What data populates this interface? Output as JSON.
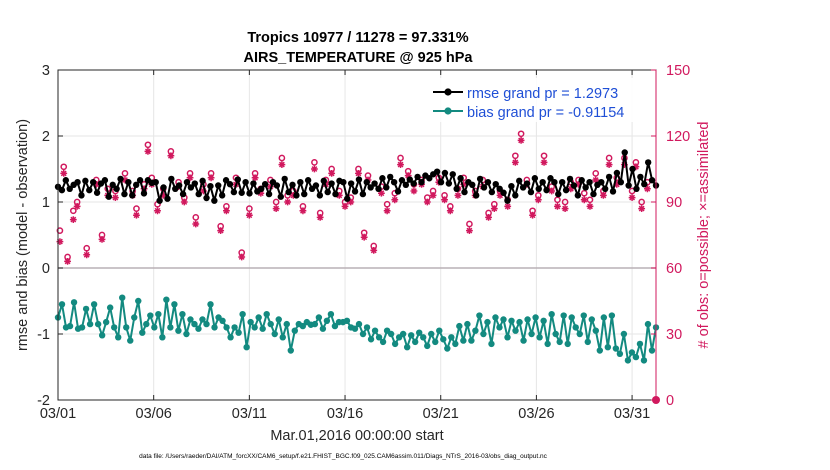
{
  "chart_data": {
    "type": "line",
    "title_line1": "Tropics 10977 / 11278 = 97.331%",
    "title_line2": "AIRS_TEMPERATURE @ 925 hPa",
    "xlabel": "Mar.01,2016 00:00:00 start",
    "ylabel_left": "rmse and bias (model - observation)",
    "ylabel_right": "# of obs: o=possible; ×=assimilated",
    "footnote": "data file: /Users/raeder/DAI/ATM_forcXX/CAM6_setup/f.e21.FHIST_BGC.f09_025.CAM6assim.011/Diags_NTrS_2016-03/obs_diag_output.nc",
    "x_tick_labels": [
      "03/01",
      "03/06",
      "03/11",
      "03/16",
      "03/21",
      "03/26",
      "03/31"
    ],
    "x_tick_days": [
      0,
      5,
      10,
      15,
      20,
      25,
      30
    ],
    "xlim_days": [
      0,
      31.25
    ],
    "ylim_left": [
      -2,
      3
    ],
    "y_ticks_left": [
      "-2",
      "-1",
      "0",
      "1",
      "2",
      "3"
    ],
    "ylim_right": [
      0,
      150
    ],
    "y_ticks_right": [
      "0",
      "30",
      "60",
      "90",
      "120",
      "150"
    ],
    "legend_position": "top-right",
    "colors": {
      "rmse": "#000000",
      "bias": "#138a80",
      "obs": "#d1195e",
      "legend_text": "#1f4fd6",
      "zero_line": "#b9b0b5",
      "grid": "#e6e6e6"
    },
    "series": [
      {
        "name": "rmse grand pr = 1.2973",
        "axis": "left",
        "style": "line-marker",
        "values": [
          1.23,
          1.18,
          1.33,
          1.2,
          1.26,
          1.3,
          1.1,
          1.32,
          1.18,
          1.3,
          1.14,
          1.28,
          1.33,
          1.08,
          1.26,
          1.2,
          1.35,
          1.12,
          1.3,
          1.1,
          1.26,
          1.33,
          1.13,
          1.33,
          1.29,
          1.3,
          1.02,
          1.22,
          1.05,
          1.35,
          1.2,
          1.25,
          1.12,
          1.3,
          1.22,
          1.28,
          1.12,
          1.32,
          1.06,
          1.24,
          1.02,
          1.25,
          1.1,
          1.33,
          1.27,
          1.15,
          1.34,
          1.14,
          1.3,
          1.13,
          1.28,
          1.16,
          1.2,
          1.27,
          1.12,
          1.3,
          1.25,
          1.08,
          1.35,
          1.15,
          1.26,
          1.1,
          1.3,
          1.12,
          1.33,
          1.2,
          1.25,
          1.1,
          1.32,
          1.15,
          1.28,
          1.12,
          1.32,
          1.3,
          1.05,
          1.28,
          1.16,
          1.34,
          1.12,
          1.3,
          1.22,
          1.28,
          1.2,
          1.36,
          1.22,
          1.38,
          1.3,
          1.16,
          1.33,
          1.26,
          1.34,
          1.28,
          1.38,
          1.3,
          1.4,
          1.36,
          1.42,
          1.46,
          1.3,
          1.44,
          1.28,
          1.42,
          1.2,
          1.36,
          1.15,
          1.3,
          1.26,
          1.1,
          1.35,
          1.22,
          1.3,
          1.15,
          1.27,
          1.2,
          1.14,
          1.02,
          1.24,
          1.1,
          1.32,
          1.22,
          1.28,
          1.15,
          1.36,
          1.2,
          1.3,
          1.18,
          1.36,
          1.3,
          1.12,
          1.3,
          1.18,
          1.35,
          1.25,
          1.1,
          1.33,
          1.22,
          1.3,
          1.12,
          1.26,
          1.3,
          1.2,
          1.38,
          1.16,
          1.44,
          1.3,
          1.75,
          1.25,
          1.5,
          1.2,
          1.38,
          1.27,
          1.6,
          1.33,
          1.25
        ]
      },
      {
        "name": "bias grand pr = -0.91154",
        "axis": "left",
        "style": "line-marker",
        "values": [
          -0.75,
          -0.55,
          -0.9,
          -0.88,
          -0.52,
          -0.92,
          -0.9,
          -0.62,
          -0.85,
          -0.55,
          -0.85,
          -1.02,
          -0.82,
          -0.6,
          -0.9,
          -1.05,
          -0.45,
          -0.9,
          -1.1,
          -0.75,
          -0.5,
          -0.98,
          -0.85,
          -0.72,
          -0.9,
          -0.7,
          -1.05,
          -0.48,
          -0.9,
          -0.55,
          -0.95,
          -0.7,
          -1.0,
          -0.78,
          -0.85,
          -0.92,
          -0.78,
          -0.85,
          -0.55,
          -0.9,
          -0.75,
          -0.8,
          -0.9,
          -1.05,
          -0.9,
          -0.98,
          -0.7,
          -1.2,
          -0.82,
          -0.9,
          -0.75,
          -0.92,
          -0.7,
          -0.85,
          -1.0,
          -0.78,
          -1.05,
          -0.85,
          -1.25,
          -0.95,
          -0.85,
          -0.88,
          -0.82,
          -0.86,
          -0.85,
          -0.75,
          -0.92,
          -0.8,
          -0.7,
          -0.88,
          -0.82,
          -0.82,
          -0.8,
          -0.9,
          -0.92,
          -0.85,
          -1.0,
          -0.9,
          -1.08,
          -0.95,
          -1.05,
          -1.12,
          -0.95,
          -1.0,
          -1.15,
          -1.05,
          -1.0,
          -1.2,
          -1.02,
          -1.12,
          -0.98,
          -1.05,
          -1.18,
          -1.0,
          -1.12,
          -0.95,
          -1.08,
          -1.22,
          -1.05,
          -1.15,
          -0.88,
          -1.1,
          -0.85,
          -1.1,
          -0.95,
          -0.72,
          -1.0,
          -0.82,
          -1.15,
          -0.75,
          -0.9,
          -0.78,
          -1.05,
          -0.8,
          -0.95,
          -0.82,
          -1.1,
          -0.78,
          -1.0,
          -0.75,
          -1.05,
          -0.8,
          -1.15,
          -0.7,
          -1.0,
          -1.12,
          -0.72,
          -1.15,
          -0.75,
          -0.9,
          -1.0,
          -0.72,
          -1.12,
          -0.78,
          -0.95,
          -1.25,
          -0.75,
          -1.2,
          -0.72,
          -1.22,
          -1.3,
          -1.0,
          -1.4,
          -1.28,
          -1.35,
          -1.15,
          -1.4,
          -0.85,
          -1.25,
          -0.9
        ]
      },
      {
        "name": "possible obs",
        "axis": "right",
        "style": "markers-circle",
        "points": [
          [
            0.1,
            77
          ],
          [
            0.3,
            106
          ],
          [
            0.5,
            65
          ],
          [
            0.8,
            86
          ],
          [
            1.0,
            90
          ],
          [
            1.5,
            69
          ],
          [
            2.0,
            100
          ],
          [
            2.3,
            75
          ],
          [
            2.6,
            96
          ],
          [
            3.0,
            95
          ],
          [
            3.5,
            103
          ],
          [
            3.9,
            95
          ],
          [
            4.1,
            87
          ],
          [
            4.5,
            98
          ],
          [
            4.7,
            116
          ],
          [
            4.9,
            101
          ],
          [
            5.2,
            89
          ],
          [
            5.5,
            96
          ],
          [
            5.9,
            113
          ],
          [
            6.3,
            99
          ],
          [
            6.6,
            92
          ],
          [
            6.9,
            103
          ],
          [
            7.2,
            83
          ],
          [
            7.6,
            98
          ],
          [
            8.0,
            103
          ],
          [
            8.5,
            79
          ],
          [
            8.8,
            88
          ],
          [
            9.3,
            101
          ],
          [
            9.6,
            67
          ],
          [
            10.0,
            87
          ],
          [
            10.3,
            103
          ],
          [
            10.6,
            96
          ],
          [
            11.1,
            100
          ],
          [
            11.4,
            90
          ],
          [
            11.7,
            110
          ],
          [
            12.0,
            93
          ],
          [
            12.3,
            95
          ],
          [
            12.8,
            88
          ],
          [
            13.4,
            108
          ],
          [
            13.7,
            85
          ],
          [
            14.0,
            100
          ],
          [
            14.3,
            105
          ],
          [
            14.7,
            95
          ],
          [
            15.0,
            90
          ],
          [
            15.3,
            92
          ],
          [
            15.7,
            105
          ],
          [
            16.0,
            76
          ],
          [
            16.2,
            102
          ],
          [
            16.5,
            70
          ],
          [
            16.9,
            97
          ],
          [
            17.2,
            89
          ],
          [
            17.6,
            94
          ],
          [
            17.9,
            110
          ],
          [
            18.3,
            104
          ],
          [
            18.6,
            98
          ],
          [
            19.0,
            100
          ],
          [
            19.3,
            92
          ],
          [
            19.6,
            95
          ],
          [
            19.9,
            101
          ],
          [
            20.2,
            93
          ],
          [
            20.5,
            88
          ],
          [
            20.9,
            96
          ],
          [
            21.2,
            101
          ],
          [
            21.5,
            80
          ],
          [
            21.8,
            95
          ],
          [
            22.2,
            100
          ],
          [
            22.5,
            85
          ],
          [
            22.8,
            89
          ],
          [
            23.1,
            95
          ],
          [
            23.5,
            91
          ],
          [
            23.9,
            111
          ],
          [
            24.2,
            121
          ],
          [
            24.5,
            100
          ],
          [
            24.8,
            86
          ],
          [
            25.1,
            93
          ],
          [
            25.4,
            111
          ],
          [
            25.8,
            97
          ],
          [
            26.1,
            91
          ],
          [
            26.5,
            90
          ],
          [
            26.8,
            99
          ],
          [
            27.2,
            100
          ],
          [
            27.5,
            94
          ],
          [
            27.8,
            91
          ],
          [
            28.1,
            103
          ],
          [
            28.5,
            95
          ],
          [
            28.8,
            110
          ],
          [
            29.2,
            101
          ],
          [
            29.6,
            110
          ],
          [
            30.0,
            95
          ],
          [
            30.2,
            108
          ],
          [
            30.5,
            90
          ],
          [
            30.8,
            99
          ]
        ]
      },
      {
        "name": "assimilated obs",
        "axis": "right",
        "style": "markers-star",
        "points": [
          [
            0.1,
            72
          ],
          [
            0.3,
            103
          ],
          [
            0.5,
            63
          ],
          [
            0.8,
            82
          ],
          [
            1.0,
            88
          ],
          [
            1.5,
            66
          ],
          [
            2.0,
            98
          ],
          [
            2.3,
            73
          ],
          [
            2.6,
            93
          ],
          [
            3.0,
            92
          ],
          [
            3.5,
            100
          ],
          [
            3.9,
            93
          ],
          [
            4.1,
            84
          ],
          [
            4.5,
            96
          ],
          [
            4.7,
            113
          ],
          [
            4.9,
            98
          ],
          [
            5.2,
            86
          ],
          [
            5.5,
            93
          ],
          [
            5.9,
            111
          ],
          [
            6.3,
            97
          ],
          [
            6.6,
            90
          ],
          [
            6.9,
            101
          ],
          [
            7.2,
            80
          ],
          [
            7.6,
            95
          ],
          [
            8.0,
            101
          ],
          [
            8.5,
            77
          ],
          [
            8.8,
            86
          ],
          [
            9.3,
            98
          ],
          [
            9.6,
            65
          ],
          [
            10.0,
            84
          ],
          [
            10.3,
            101
          ],
          [
            10.6,
            94
          ],
          [
            11.1,
            97
          ],
          [
            11.4,
            87
          ],
          [
            11.7,
            107
          ],
          [
            12.0,
            90
          ],
          [
            12.3,
            93
          ],
          [
            12.8,
            86
          ],
          [
            13.4,
            105
          ],
          [
            13.7,
            83
          ],
          [
            14.0,
            98
          ],
          [
            14.3,
            103
          ],
          [
            14.7,
            93
          ],
          [
            15.0,
            88
          ],
          [
            15.3,
            90
          ],
          [
            15.7,
            103
          ],
          [
            16.0,
            74
          ],
          [
            16.2,
            100
          ],
          [
            16.5,
            68
          ],
          [
            16.9,
            94
          ],
          [
            17.2,
            86
          ],
          [
            17.6,
            91
          ],
          [
            17.9,
            107
          ],
          [
            18.3,
            102
          ],
          [
            18.6,
            95
          ],
          [
            19.0,
            98
          ],
          [
            19.3,
            90
          ],
          [
            19.6,
            93
          ],
          [
            19.9,
            99
          ],
          [
            20.2,
            91
          ],
          [
            20.5,
            86
          ],
          [
            20.9,
            93
          ],
          [
            21.2,
            98
          ],
          [
            21.5,
            77
          ],
          [
            21.8,
            93
          ],
          [
            22.2,
            97
          ],
          [
            22.5,
            83
          ],
          [
            22.8,
            87
          ],
          [
            23.1,
            93
          ],
          [
            23.5,
            88
          ],
          [
            23.9,
            108
          ],
          [
            24.2,
            118
          ],
          [
            24.5,
            98
          ],
          [
            24.8,
            84
          ],
          [
            25.1,
            91
          ],
          [
            25.4,
            108
          ],
          [
            25.8,
            95
          ],
          [
            26.1,
            88
          ],
          [
            26.5,
            87
          ],
          [
            26.8,
            96
          ],
          [
            27.2,
            98
          ],
          [
            27.5,
            91
          ],
          [
            27.8,
            88
          ],
          [
            28.1,
            100
          ],
          [
            28.5,
            93
          ],
          [
            28.8,
            107
          ],
          [
            29.2,
            98
          ],
          [
            29.6,
            107
          ],
          [
            30.0,
            92
          ],
          [
            30.2,
            106
          ],
          [
            30.5,
            87
          ],
          [
            30.8,
            96
          ]
        ]
      }
    ]
  }
}
